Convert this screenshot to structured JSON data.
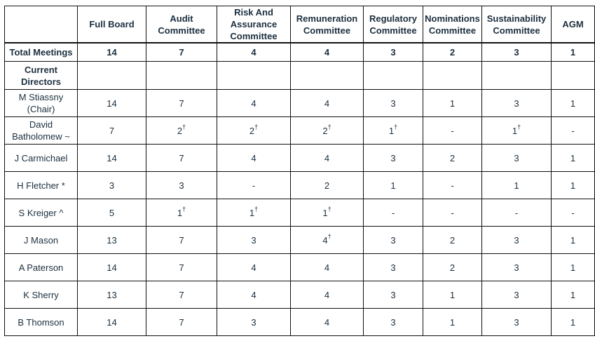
{
  "columns": [
    "Full Board",
    "Audit Committee",
    "Risk And Assurance Committee",
    "Remuneration Committee",
    "Regulatory Committee",
    "Nominations Committee",
    "Sustainability Committee",
    "AGM"
  ],
  "total_label": "Total Meetings",
  "totals": [
    "14",
    "7",
    "4",
    "4",
    "3",
    "2",
    "3",
    "1"
  ],
  "section_label": "Current Directors",
  "footnote_mark": "†",
  "rows": [
    {
      "name": "M Stiassny (Chair)",
      "cells": [
        {
          "v": "14",
          "f": false
        },
        {
          "v": "7",
          "f": false
        },
        {
          "v": "4",
          "f": false
        },
        {
          "v": "4",
          "f": false
        },
        {
          "v": "3",
          "f": false
        },
        {
          "v": "1",
          "f": false
        },
        {
          "v": "3",
          "f": false
        },
        {
          "v": "1",
          "f": false
        }
      ]
    },
    {
      "name": "David Batholomew ~",
      "cells": [
        {
          "v": "7",
          "f": false
        },
        {
          "v": "2",
          "f": true
        },
        {
          "v": "2",
          "f": true
        },
        {
          "v": "2",
          "f": true
        },
        {
          "v": "1",
          "f": true
        },
        {
          "v": "-",
          "f": false
        },
        {
          "v": "1",
          "f": true
        },
        {
          "v": "-",
          "f": false
        }
      ]
    },
    {
      "name": "J Carmichael",
      "cells": [
        {
          "v": "14",
          "f": false
        },
        {
          "v": "7",
          "f": false
        },
        {
          "v": "4",
          "f": false
        },
        {
          "v": "4",
          "f": false
        },
        {
          "v": "3",
          "f": false
        },
        {
          "v": "2",
          "f": false
        },
        {
          "v": "3",
          "f": false
        },
        {
          "v": "1",
          "f": false
        }
      ]
    },
    {
      "name": "H Fletcher *",
      "cells": [
        {
          "v": "3",
          "f": false
        },
        {
          "v": "3",
          "f": false
        },
        {
          "v": "-",
          "f": false
        },
        {
          "v": "2",
          "f": false
        },
        {
          "v": "1",
          "f": false
        },
        {
          "v": "-",
          "f": false
        },
        {
          "v": "1",
          "f": false
        },
        {
          "v": "1",
          "f": false
        }
      ]
    },
    {
      "name": "S Kreiger ^",
      "cells": [
        {
          "v": "5",
          "f": false
        },
        {
          "v": "1",
          "f": true
        },
        {
          "v": "1",
          "f": true
        },
        {
          "v": "1",
          "f": true
        },
        {
          "v": "-",
          "f": false
        },
        {
          "v": "-",
          "f": false
        },
        {
          "v": "-",
          "f": false
        },
        {
          "v": "-",
          "f": false
        }
      ]
    },
    {
      "name": "J Mason",
      "cells": [
        {
          "v": "13",
          "f": false
        },
        {
          "v": "7",
          "f": false
        },
        {
          "v": "3",
          "f": false
        },
        {
          "v": "4",
          "f": true
        },
        {
          "v": "3",
          "f": false
        },
        {
          "v": "2",
          "f": false
        },
        {
          "v": "3",
          "f": false
        },
        {
          "v": "1",
          "f": false
        }
      ]
    },
    {
      "name": "A Paterson",
      "cells": [
        {
          "v": "14",
          "f": false
        },
        {
          "v": "7",
          "f": false
        },
        {
          "v": "4",
          "f": false
        },
        {
          "v": "4",
          "f": false
        },
        {
          "v": "3",
          "f": false
        },
        {
          "v": "2",
          "f": false
        },
        {
          "v": "3",
          "f": false
        },
        {
          "v": "1",
          "f": false
        }
      ]
    },
    {
      "name": "K Sherry",
      "cells": [
        {
          "v": "13",
          "f": false
        },
        {
          "v": "7",
          "f": false
        },
        {
          "v": "4",
          "f": false
        },
        {
          "v": "4",
          "f": false
        },
        {
          "v": "3",
          "f": false
        },
        {
          "v": "1",
          "f": false
        },
        {
          "v": "3",
          "f": false
        },
        {
          "v": "1",
          "f": false
        }
      ]
    },
    {
      "name": "B Thomson",
      "cells": [
        {
          "v": "14",
          "f": false
        },
        {
          "v": "7",
          "f": false
        },
        {
          "v": "3",
          "f": false
        },
        {
          "v": "4",
          "f": false
        },
        {
          "v": "3",
          "f": false
        },
        {
          "v": "1",
          "f": false
        },
        {
          "v": "3",
          "f": false
        },
        {
          "v": "1",
          "f": false
        }
      ]
    }
  ]
}
